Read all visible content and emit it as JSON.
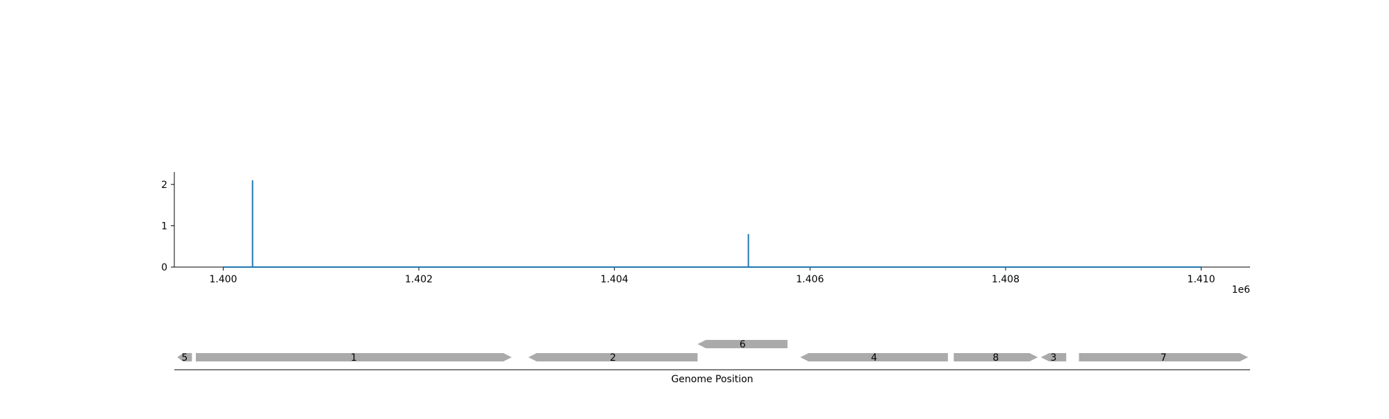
{
  "chart_data": {
    "type": "line",
    "x": [
      1400000,
      1400300,
      1400300,
      1400300,
      1405370,
      1405370,
      1405370,
      1410000
    ],
    "series": [
      {
        "values": [
          0,
          0,
          2.1,
          0,
          0,
          0.8,
          0,
          0
        ],
        "color": "#1f77b4"
      }
    ],
    "xlim": [
      1399500,
      1410500
    ],
    "ylim": [
      0,
      2.3
    ],
    "xticks": [
      1400000,
      1402000,
      1404000,
      1406000,
      1408000,
      1410000
    ],
    "xtick_labels": [
      "1.400",
      "1.402",
      "1.404",
      "1.406",
      "1.408",
      "1.410"
    ],
    "yticks": [
      0,
      1,
      2
    ],
    "ytick_labels": [
      "0",
      "1",
      "2"
    ],
    "x_offset_label": "1e6",
    "grid": false,
    "genes": [
      {
        "label": "5",
        "start": 1399530,
        "end": 1399680,
        "strand": "-",
        "row": 0
      },
      {
        "label": "1",
        "start": 1399720,
        "end": 1402950,
        "strand": "+",
        "row": 0
      },
      {
        "label": "2",
        "start": 1403120,
        "end": 1404850,
        "strand": "-",
        "row": 0
      },
      {
        "label": "6",
        "start": 1404850,
        "end": 1405770,
        "strand": "-",
        "row": 1
      },
      {
        "label": "4",
        "start": 1405900,
        "end": 1407410,
        "strand": "-",
        "row": 0
      },
      {
        "label": "8",
        "start": 1407470,
        "end": 1408330,
        "strand": "+",
        "row": 0
      },
      {
        "label": "3",
        "start": 1408360,
        "end": 1408620,
        "strand": "-",
        "row": 0
      },
      {
        "label": "7",
        "start": 1408750,
        "end": 1410480,
        "strand": "+",
        "row": 0
      }
    ],
    "gene_color": "#aaaaaa",
    "gene_xlabel": "Genome Position"
  }
}
